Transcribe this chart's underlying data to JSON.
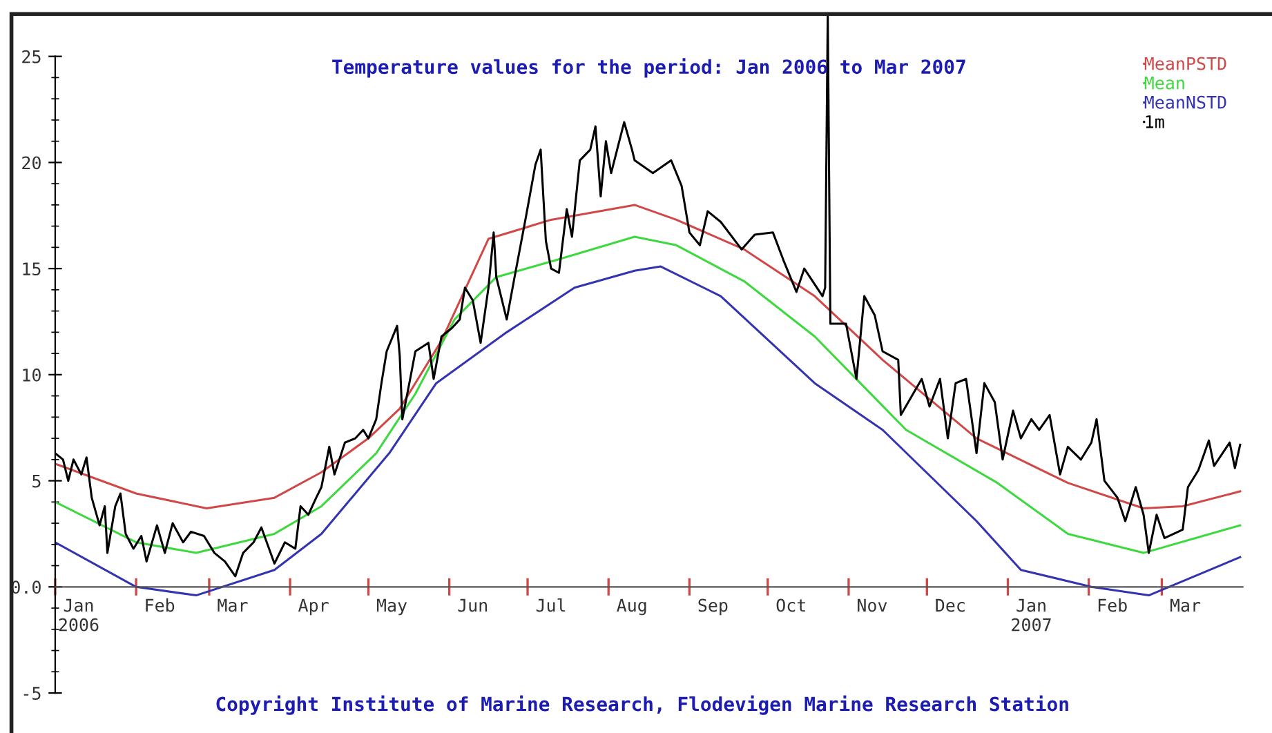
{
  "chart_data": {
    "type": "line",
    "title": "Temperature values for the period: Jan 2006 to Mar 2007",
    "annotations": [
      "Copyright Institute of Marine Research, Flodevigen Marine Research Station"
    ],
    "series": [
      {
        "name": "MeanPSTD",
        "color": "#d04848",
        "x": [
          "2006-01-01",
          "2006-02-01",
          "2006-02-28",
          "2006-03-26",
          "2006-04-13",
          "2006-05-01",
          "2006-05-13",
          "2006-05-29",
          "2006-06-16",
          "2006-07-10",
          "2006-08-11",
          "2006-08-27",
          "2006-09-22",
          "2006-10-19",
          "2006-11-14",
          "2006-12-20",
          "2007-01-24",
          "2007-02-22",
          "2007-03-09",
          "2007-03-31"
        ],
        "values": [
          5.8,
          4.4,
          3.7,
          4.2,
          5.4,
          7.0,
          8.4,
          11.6,
          16.4,
          17.3,
          18.0,
          17.3,
          15.9,
          13.7,
          10.7,
          7.0,
          4.9,
          3.7,
          3.8,
          4.5
        ]
      },
      {
        "name": "Mean",
        "color": "#40d840",
        "x": [
          "2006-01-01",
          "2006-02-01",
          "2006-02-24",
          "2006-03-26",
          "2006-04-13",
          "2006-05-04",
          "2006-05-19",
          "2006-06-03",
          "2006-06-19",
          "2006-07-12",
          "2006-08-11",
          "2006-08-27",
          "2006-09-22",
          "2006-10-19",
          "2006-11-23",
          "2006-12-28",
          "2007-01-24",
          "2007-02-22",
          "2007-03-31"
        ],
        "values": [
          4.0,
          2.1,
          1.6,
          2.5,
          3.8,
          6.3,
          9.1,
          12.6,
          14.6,
          15.4,
          16.5,
          16.1,
          14.4,
          11.8,
          7.4,
          4.9,
          2.5,
          1.6,
          2.9
        ]
      },
      {
        "name": "MeanNSTD",
        "color": "#3434b0",
        "x": [
          "2006-01-01",
          "2006-02-01",
          "2006-02-24",
          "2006-03-26",
          "2006-04-13",
          "2006-05-09",
          "2006-05-27",
          "2006-06-23",
          "2006-07-19",
          "2006-08-11",
          "2006-08-21",
          "2006-09-13",
          "2006-10-19",
          "2006-11-14",
          "2006-12-20",
          "2007-01-06",
          "2007-02-02",
          "2007-02-24",
          "2007-03-31"
        ],
        "values": [
          2.1,
          0.0,
          -0.4,
          0.8,
          2.5,
          6.3,
          9.6,
          12.0,
          14.1,
          14.9,
          15.1,
          13.7,
          9.6,
          7.4,
          3.1,
          0.8,
          0.0,
          -0.4,
          1.4
        ]
      },
      {
        "name": "1m",
        "color": "#000000",
        "x": [
          "2006-01-01",
          "2006-01-04",
          "2006-01-06",
          "2006-01-08",
          "2006-01-11",
          "2006-01-13",
          "2006-01-15",
          "2006-01-18",
          "2006-01-20",
          "2006-01-21",
          "2006-01-24",
          "2006-01-26",
          "2006-01-28",
          "2006-01-31",
          "2006-02-03",
          "2006-02-05",
          "2006-02-09",
          "2006-02-12",
          "2006-02-15",
          "2006-02-19",
          "2006-02-22",
          "2006-02-27",
          "2006-03-03",
          "2006-03-07",
          "2006-03-11",
          "2006-03-14",
          "2006-03-18",
          "2006-03-21",
          "2006-03-26",
          "2006-03-30",
          "2006-04-03",
          "2006-04-05",
          "2006-04-08",
          "2006-04-11",
          "2006-04-13",
          "2006-04-16",
          "2006-04-18",
          "2006-04-22",
          "2006-04-26",
          "2006-04-29",
          "2006-05-01",
          "2006-05-04",
          "2006-05-06",
          "2006-05-08",
          "2006-05-12",
          "2006-05-13",
          "2006-05-14",
          "2006-05-17",
          "2006-05-19",
          "2006-05-24",
          "2006-05-26",
          "2006-05-29",
          "2006-06-02",
          "2006-06-05",
          "2006-06-07",
          "2006-06-10",
          "2006-06-13",
          "2006-06-16",
          "2006-06-18",
          "2006-06-19",
          "2006-06-23",
          "2006-06-26",
          "2006-06-30",
          "2006-07-04",
          "2006-07-06",
          "2006-07-08",
          "2006-07-10",
          "2006-07-13",
          "2006-07-16",
          "2006-07-18",
          "2006-07-21",
          "2006-07-25",
          "2006-07-27",
          "2006-07-29",
          "2006-07-31",
          "2006-08-02",
          "2006-08-07",
          "2006-08-10",
          "2006-08-11",
          "2006-08-18",
          "2006-08-25",
          "2006-08-29",
          "2006-09-01",
          "2006-09-05",
          "2006-09-08",
          "2006-09-13",
          "2006-09-21",
          "2006-09-26",
          "2006-10-03",
          "2006-10-07",
          "2006-10-12",
          "2006-10-15",
          "2006-10-22",
          "2006-10-23",
          "2006-10-24",
          "2006-10-25",
          "2006-10-31",
          "2006-11-04",
          "2006-11-07",
          "2006-11-11",
          "2006-11-14",
          "2006-11-20",
          "2006-11-21",
          "2006-11-29",
          "2006-12-02",
          "2006-12-06",
          "2006-12-09",
          "2006-12-12",
          "2006-12-16",
          "2006-12-20",
          "2006-12-23",
          "2006-12-27",
          "2006-12-30",
          "2007-01-03",
          "2007-01-06",
          "2007-01-10",
          "2007-01-13",
          "2007-01-17",
          "2007-01-21",
          "2007-01-24",
          "2007-01-29",
          "2007-02-02",
          "2007-02-04",
          "2007-02-07",
          "2007-02-12",
          "2007-02-15",
          "2007-02-19",
          "2007-02-22",
          "2007-02-24",
          "2007-02-27",
          "2007-03-02",
          "2007-03-09",
          "2007-03-11",
          "2007-03-15",
          "2007-03-19",
          "2007-03-21",
          "2007-03-27",
          "2007-03-29",
          "2007-03-31"
        ],
        "values": [
          6.3,
          6.0,
          5.0,
          6.0,
          5.3,
          6.1,
          4.2,
          2.9,
          3.8,
          1.6,
          3.8,
          4.4,
          2.5,
          1.8,
          2.4,
          1.2,
          2.9,
          1.6,
          3.0,
          2.1,
          2.6,
          2.4,
          1.6,
          1.2,
          0.5,
          1.6,
          2.1,
          2.8,
          1.1,
          2.1,
          1.8,
          3.8,
          3.4,
          4.2,
          4.7,
          6.6,
          5.3,
          6.8,
          7.0,
          7.4,
          7.0,
          7.9,
          9.6,
          11.1,
          12.3,
          10.9,
          7.9,
          9.8,
          11.1,
          11.5,
          9.8,
          11.8,
          12.2,
          12.6,
          14.1,
          13.5,
          11.5,
          14.1,
          16.7,
          14.6,
          12.6,
          14.6,
          17.2,
          19.9,
          20.6,
          16.3,
          15.0,
          14.8,
          17.8,
          16.5,
          20.1,
          20.6,
          21.7,
          18.4,
          21.0,
          19.5,
          21.9,
          20.6,
          20.1,
          19.5,
          20.1,
          18.9,
          16.7,
          16.1,
          17.7,
          17.2,
          15.9,
          16.6,
          16.7,
          15.4,
          13.9,
          15.0,
          13.7,
          14.1,
          27,
          12.4,
          12.4,
          9.8,
          13.7,
          12.8,
          11.1,
          10.7,
          8.1,
          9.8,
          8.5,
          9.8,
          7.0,
          9.6,
          9.8,
          6.3,
          9.6,
          8.7,
          6.0,
          8.3,
          7.0,
          7.9,
          7.4,
          8.1,
          5.3,
          6.6,
          6.0,
          6.8,
          7.9,
          5.0,
          4.2,
          3.1,
          4.7,
          3.4,
          1.6,
          3.4,
          2.3,
          2.7,
          4.7,
          5.5,
          6.9,
          5.7,
          6.8,
          5.6,
          6.7
        ]
      }
    ],
    "xlim": [
      "2006-01-01",
      "2007-04-01"
    ],
    "xticks": [
      {
        "value": "2006-01-01",
        "label": null
      },
      {
        "value": "2006-02-01",
        "label": null
      },
      {
        "value": "2006-03-01",
        "label": null
      },
      {
        "value": "2006-04-01",
        "label": null
      },
      {
        "value": "2006-05-01",
        "label": null
      },
      {
        "value": "2006-06-01",
        "label": null
      },
      {
        "value": "2006-07-01",
        "label": null
      },
      {
        "value": "2006-08-01",
        "label": null
      },
      {
        "value": "2006-09-01",
        "label": null
      },
      {
        "value": "2006-10-01",
        "label": null
      },
      {
        "value": "2006-11-01",
        "label": null
      },
      {
        "value": "2006-12-01",
        "label": null
      },
      {
        "value": "2007-01-01",
        "label": null
      },
      {
        "value": "2007-02-01",
        "label": null
      },
      {
        "value": "2007-03-01",
        "label": null
      },
      {
        "value": "2006-01-10",
        "label": "Jan\n2006"
      },
      {
        "value": "2006-02-10",
        "label": "Feb"
      },
      {
        "value": "2006-03-10",
        "label": "Mar"
      },
      {
        "value": "2006-04-10",
        "label": "Apr"
      },
      {
        "value": "2006-05-10",
        "label": "May"
      },
      {
        "value": "2006-06-10",
        "label": "Jun"
      },
      {
        "value": "2006-07-10",
        "label": "Jul"
      },
      {
        "value": "2006-08-10",
        "label": "Aug"
      },
      {
        "value": "2006-09-10",
        "label": "Sep"
      },
      {
        "value": "2006-10-10",
        "label": "Oct"
      },
      {
        "value": "2006-11-10",
        "label": "Nov"
      },
      {
        "value": "2006-12-10",
        "label": "Dec"
      },
      {
        "value": "2007-01-10",
        "label": "Jan\n2007"
      },
      {
        "value": "2007-02-10",
        "label": "Feb"
      },
      {
        "value": "2007-03-10",
        "label": "Mar"
      }
    ],
    "ylim": [
      -5,
      27
    ],
    "yticks": [
      -5,
      {
        "value": 0,
        "label": "0.0"
      },
      5,
      10,
      15,
      20,
      25,
      {
        "value": -4,
        "label": null
      },
      {
        "value": -3,
        "label": null
      },
      {
        "value": -2,
        "label": null
      },
      {
        "value": -1,
        "label": null
      },
      {
        "value": 1,
        "label": null
      },
      {
        "value": 2,
        "label": null
      },
      {
        "value": 3,
        "label": null
      },
      {
        "value": 4,
        "label": null
      },
      {
        "value": 6,
        "label": null
      },
      {
        "value": 7,
        "label": null
      },
      {
        "value": 8,
        "label": null
      },
      {
        "value": 9,
        "label": null
      },
      {
        "value": 11,
        "label": null
      },
      {
        "value": 12,
        "label": null
      },
      {
        "value": 13,
        "label": null
      },
      {
        "value": 14,
        "label": null
      },
      {
        "value": 16,
        "label": null
      },
      {
        "value": 17,
        "label": null
      },
      {
        "value": 18,
        "label": null
      },
      {
        "value": 19,
        "label": null
      },
      {
        "value": 21,
        "label": null
      },
      {
        "value": 22,
        "label": null
      },
      {
        "value": 23,
        "label": null
      },
      {
        "value": 24,
        "label": null
      }
    ],
    "legend": "top right",
    "grid": false,
    "marker": "none",
    "line_style": "solid"
  }
}
